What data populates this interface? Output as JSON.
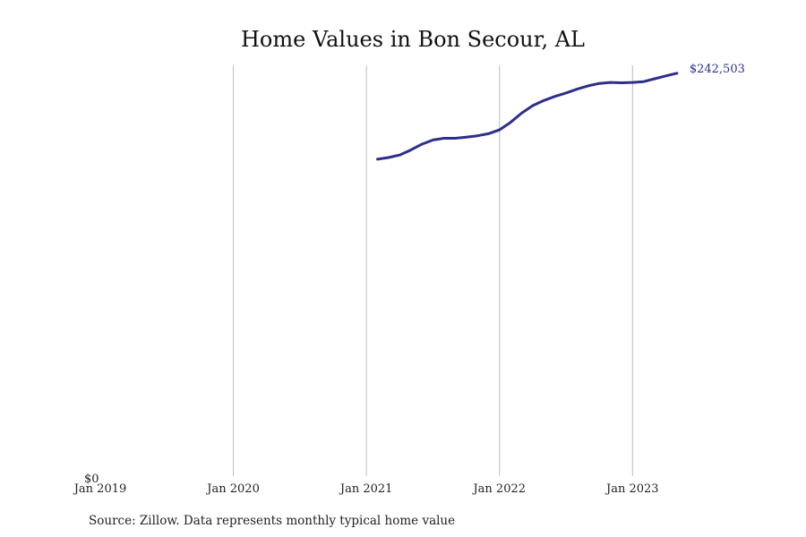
{
  "chart_data": {
    "type": "line",
    "title": "Home Values in Bon Secour, AL",
    "xlabel": "",
    "ylabel": "",
    "y_tick_labels": [
      "$0"
    ],
    "x_tick_labels": [
      "Jan 2019",
      "Jan 2020",
      "Jan 2021",
      "Jan 2022",
      "Jan 2023"
    ],
    "x_ticks": [
      "2019-01",
      "2020-01",
      "2021-01",
      "2022-01",
      "2023-01"
    ],
    "xlim": [
      "2019-01",
      "2023-08"
    ],
    "ylim": [
      0,
      245000
    ],
    "grid": "vertical",
    "series": [
      {
        "color": "#2e2e8c",
        "end_label": "$242,503",
        "x": [
          "2021-02",
          "2021-03",
          "2021-04",
          "2021-05",
          "2021-06",
          "2021-07",
          "2021-08",
          "2021-09",
          "2021-10",
          "2021-11",
          "2021-12",
          "2022-01",
          "2022-02",
          "2022-03",
          "2022-04",
          "2022-05",
          "2022-06",
          "2022-07",
          "2022-08",
          "2022-09",
          "2022-10",
          "2022-11",
          "2022-12",
          "2023-01",
          "2023-02",
          "2023-03",
          "2023-04",
          "2023-05"
        ],
        "values": [
          189000,
          190000,
          191500,
          194500,
          198000,
          200500,
          201500,
          201500,
          202200,
          203000,
          204200,
          206500,
          211000,
          216500,
          221000,
          224000,
          226500,
          228500,
          230800,
          232800,
          234200,
          234800,
          234600,
          234800,
          235300,
          237000,
          238700,
          240300
        ]
      }
    ]
  },
  "source_note": "Source: Zillow. Data represents monthly typical home value"
}
